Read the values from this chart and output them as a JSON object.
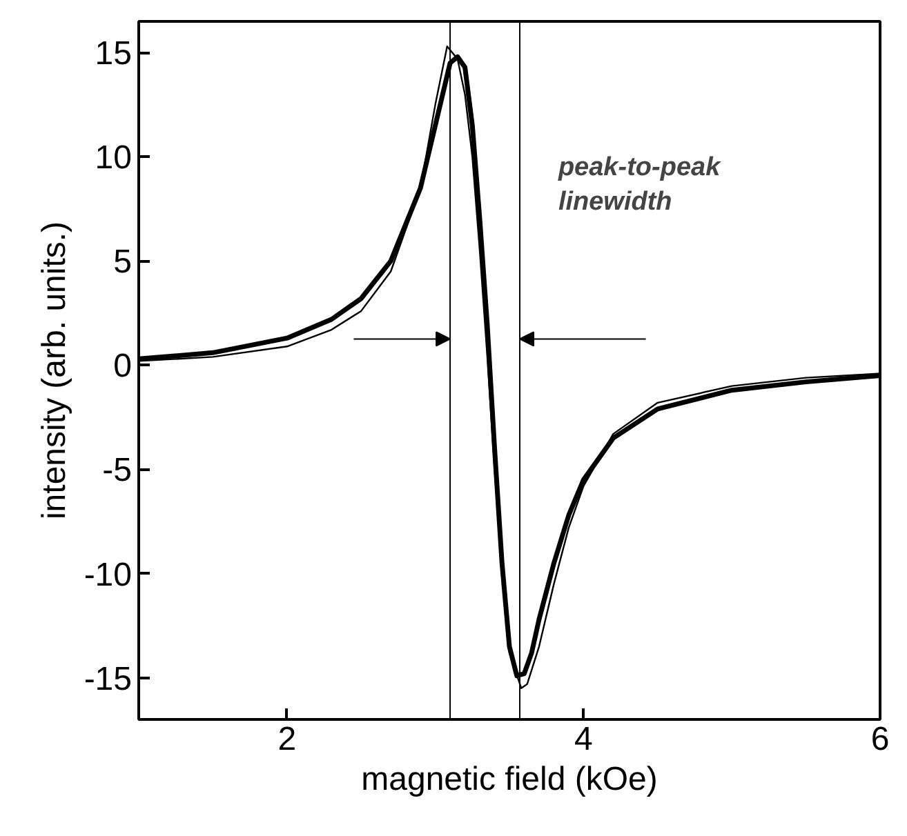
{
  "chart_data": {
    "type": "line",
    "xlabel": "magnetic field (kOe)",
    "ylabel": "intensity (arb. units.)",
    "xlim": [
      1,
      6
    ],
    "ylim": [
      -17,
      16.5
    ],
    "xticks": [
      2,
      4,
      6
    ],
    "yticks": [
      -15,
      -10,
      -5,
      0,
      5,
      10,
      15
    ],
    "grid": false,
    "marker": "none",
    "line_style": "solid",
    "series": [
      {
        "color": "#000000",
        "x": [
          1,
          1.5,
          2,
          2.3,
          2.5,
          2.7,
          2.9,
          3.0,
          3.1,
          3.15,
          3.2,
          3.25,
          3.3,
          3.35,
          3.4,
          3.45,
          3.5,
          3.55,
          3.6,
          3.65,
          3.7,
          3.8,
          3.9,
          4.0,
          4.2,
          4.5,
          5.0,
          5.5,
          6
        ],
        "values": [
          0.3,
          0.6,
          1.3,
          2.2,
          3.2,
          5.0,
          8.5,
          11.5,
          14.5,
          14.8,
          14.3,
          11.5,
          7,
          2,
          -4,
          -9.5,
          -13.5,
          -14.9,
          -14.8,
          -13.8,
          -12.2,
          -9.5,
          -7.2,
          -5.5,
          -3.5,
          -2.1,
          -1.2,
          -0.8,
          -0.5
        ]
      },
      {
        "color": "#000000",
        "x": [
          1,
          1.5,
          2,
          2.3,
          2.5,
          2.7,
          2.9,
          3.0,
          3.08,
          3.15,
          3.2,
          3.25,
          3.3,
          3.35,
          3.4,
          3.45,
          3.5,
          3.58,
          3.62,
          3.7,
          3.8,
          3.9,
          4.0,
          4.2,
          4.5,
          5.0,
          5.5,
          6
        ],
        "values": [
          0.2,
          0.4,
          0.9,
          1.7,
          2.6,
          4.5,
          8.5,
          12.5,
          15.3,
          14.7,
          13,
          10,
          5.5,
          0.5,
          -5,
          -10,
          -13.8,
          -15.5,
          -15.3,
          -13.5,
          -10.5,
          -7.8,
          -5.8,
          -3.3,
          -1.8,
          -1.0,
          -0.6,
          -0.4
        ]
      }
    ],
    "ref_lines": [
      {
        "axis": "x",
        "value": 3.1,
        "color": "#000000"
      },
      {
        "axis": "x",
        "value": 3.57,
        "color": "#000000"
      }
    ],
    "annotations": [
      "peak-to-peak\nlinewidth"
    ]
  }
}
